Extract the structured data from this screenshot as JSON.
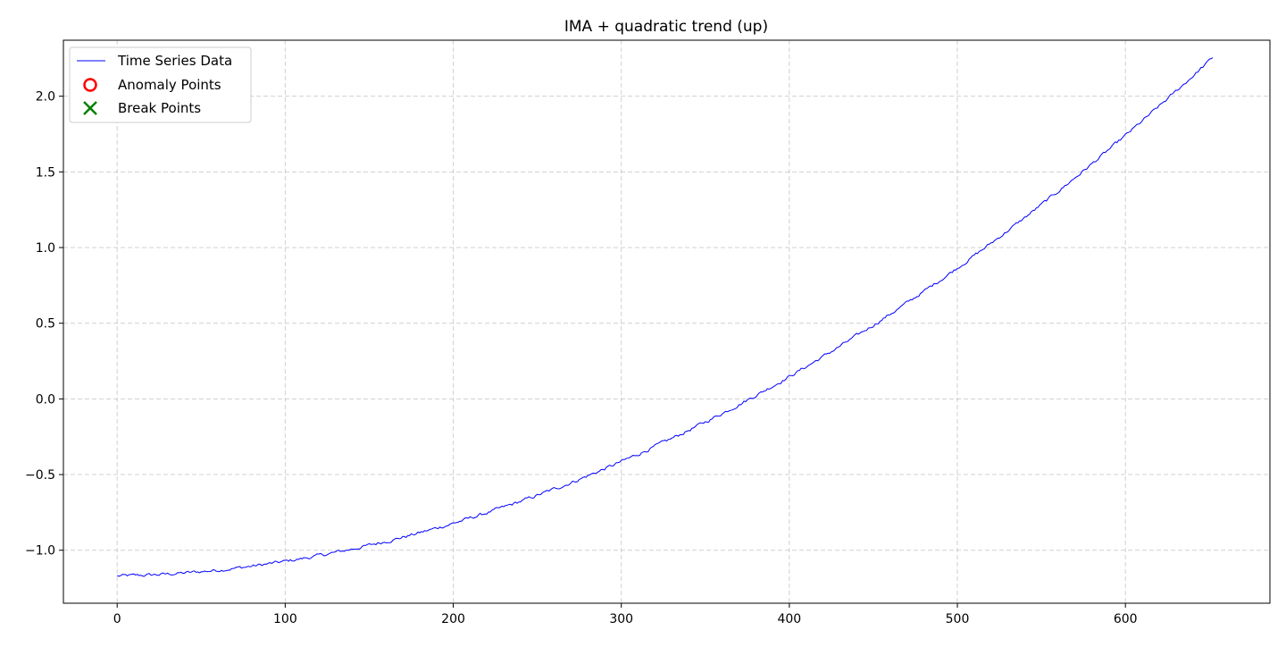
{
  "chart_data": {
    "type": "line",
    "title": "IMA + quadratic trend (up)",
    "xlabel": "",
    "ylabel": "",
    "xlim": [
      -32,
      686
    ],
    "ylim": [
      -1.35,
      2.37
    ],
    "xticks": [
      0,
      100,
      200,
      300,
      400,
      500,
      600
    ],
    "yticks": [
      -1.0,
      -0.5,
      0.0,
      0.5,
      1.0,
      1.5,
      2.0
    ],
    "xtick_labels": [
      "0",
      "100",
      "200",
      "300",
      "400",
      "500",
      "600"
    ],
    "ytick_labels": [
      "−1.0",
      "−0.5",
      "0.0",
      "0.5",
      "1.0",
      "1.5",
      "2.0"
    ],
    "grid": true,
    "legend_position": "top-left",
    "series": [
      {
        "name": "Time Series Data",
        "style": "line",
        "color": "#0000ff",
        "x_start": 0,
        "x_end": 652,
        "quadratic_trend": {
          "a": 7.77e-06,
          "b": 0.000187,
          "c": -1.17
        },
        "anchor_points": [
          [
            0,
            -1.17
          ],
          [
            20,
            -1.16
          ],
          [
            50,
            -1.13
          ],
          [
            100,
            -1.05
          ],
          [
            150,
            -0.95
          ],
          [
            200,
            -0.8
          ],
          [
            250,
            -0.62
          ],
          [
            300,
            -0.38
          ],
          [
            350,
            -0.14
          ],
          [
            400,
            0.17
          ],
          [
            450,
            0.49
          ],
          [
            500,
            0.85
          ],
          [
            550,
            1.26
          ],
          [
            600,
            1.7
          ],
          [
            652,
            2.21
          ]
        ]
      },
      {
        "name": "Anomaly Points",
        "style": "marker-circle",
        "color": "#ff0000",
        "points": []
      },
      {
        "name": "Break Points",
        "style": "marker-x",
        "color": "#008000",
        "points": []
      }
    ]
  }
}
